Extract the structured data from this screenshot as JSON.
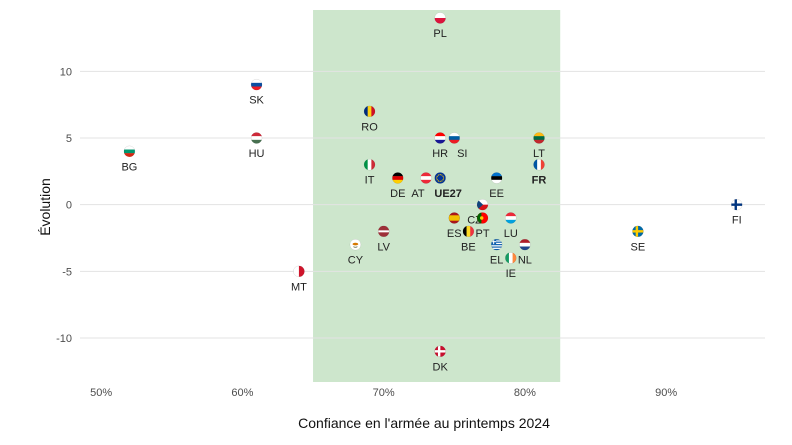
{
  "chart_data": {
    "type": "scatter",
    "title": "",
    "xlabel": "Confiance en l'armée au printemps 2024",
    "ylabel": "Évolution",
    "xlim": [
      48.5,
      97
    ],
    "ylim": [
      -13.3,
      14.6
    ],
    "x_ticks": [
      50,
      60,
      70,
      80,
      90
    ],
    "x_tick_labels": [
      "50%",
      "60%",
      "70%",
      "80%",
      "90%"
    ],
    "y_ticks": [
      -10,
      -5,
      0,
      5,
      10
    ],
    "y_tick_labels": [
      "-10",
      "-5",
      "0",
      "5",
      "10"
    ],
    "grid": "horizontal",
    "highlight_band": {
      "x_from": 65,
      "x_to": 82.5,
      "color": "#cde6cc"
    },
    "points": [
      {
        "label": "PL",
        "x": 74,
        "y": 14,
        "flag": "pl",
        "label_pos": "below"
      },
      {
        "label": "SK",
        "x": 61,
        "y": 9,
        "flag": "sk",
        "label_pos": "below"
      },
      {
        "label": "RO",
        "x": 69,
        "y": 7,
        "flag": "ro",
        "label_pos": "below"
      },
      {
        "label": "HR",
        "x": 74,
        "y": 5,
        "flag": "hr",
        "label_pos": "below"
      },
      {
        "label": "SI",
        "x": 75,
        "y": 5,
        "flag": "si",
        "label_pos": "below-right"
      },
      {
        "label": "LT",
        "x": 81,
        "y": 5,
        "flag": "lt",
        "label_pos": "below"
      },
      {
        "label": "HU",
        "x": 61,
        "y": 5,
        "flag": "hu",
        "label_pos": "below"
      },
      {
        "label": "BG",
        "x": 52,
        "y": 4,
        "flag": "bg",
        "label_pos": "below"
      },
      {
        "label": "IT",
        "x": 69,
        "y": 3,
        "flag": "it",
        "label_pos": "below"
      },
      {
        "label": "FR",
        "x": 81,
        "y": 3,
        "flag": "fr",
        "label_pos": "below",
        "bold": true
      },
      {
        "label": "DE",
        "x": 71,
        "y": 2,
        "flag": "de",
        "label_pos": "below"
      },
      {
        "label": "AT",
        "x": 73,
        "y": 2,
        "flag": "at",
        "label_pos": "below-left"
      },
      {
        "label": "UE27",
        "x": 74,
        "y": 2,
        "flag": "eu",
        "label_pos": "below-right",
        "bold": true
      },
      {
        "label": "EE",
        "x": 78,
        "y": 2,
        "flag": "ee",
        "label_pos": "below"
      },
      {
        "label": "FI",
        "x": 95,
        "y": 0,
        "flag": "fi",
        "label_pos": "below"
      },
      {
        "label": "CZ",
        "x": 77,
        "y": 0,
        "flag": "cz",
        "label_pos": "below-left"
      },
      {
        "label": "ES",
        "x": 75,
        "y": -1,
        "flag": "es",
        "label_pos": "below"
      },
      {
        "label": "PT",
        "x": 77,
        "y": -1,
        "flag": "pt",
        "label_pos": "below"
      },
      {
        "label": "LU",
        "x": 79,
        "y": -1,
        "flag": "lu",
        "label_pos": "below"
      },
      {
        "label": "LV",
        "x": 70,
        "y": -2,
        "flag": "lv",
        "label_pos": "below"
      },
      {
        "label": "BE",
        "x": 76,
        "y": -2,
        "flag": "be",
        "label_pos": "below"
      },
      {
        "label": "SE",
        "x": 88,
        "y": -2,
        "flag": "se",
        "label_pos": "below"
      },
      {
        "label": "CY",
        "x": 68,
        "y": -3,
        "flag": "cy",
        "label_pos": "below"
      },
      {
        "label": "EL",
        "x": 78,
        "y": -3,
        "flag": "el",
        "label_pos": "below"
      },
      {
        "label": "NL",
        "x": 80,
        "y": -3,
        "flag": "nl",
        "label_pos": "below"
      },
      {
        "label": "IE",
        "x": 79,
        "y": -4,
        "flag": "ie",
        "label_pos": "below"
      },
      {
        "label": "MT",
        "x": 64,
        "y": -5,
        "flag": "mt",
        "label_pos": "below"
      },
      {
        "label": "DK",
        "x": 74,
        "y": -11,
        "flag": "dk",
        "label_pos": "below"
      }
    ]
  }
}
